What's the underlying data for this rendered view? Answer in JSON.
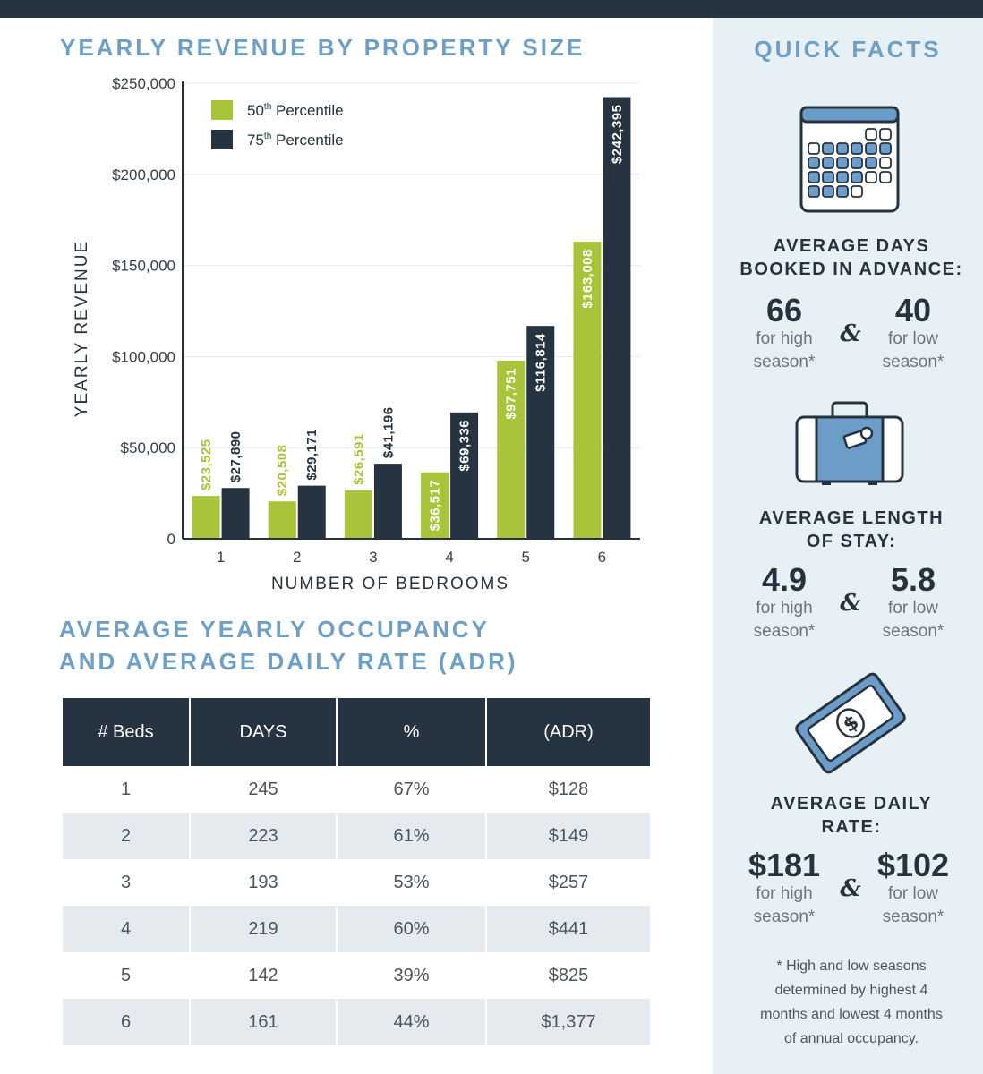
{
  "colors": {
    "navy": "#263340",
    "lime": "#a8c43a",
    "title_blue": "#6e9fc5",
    "sidebar_bg": "#e7f1f5",
    "table_alt": "#e4eaee",
    "icon_blue": "#6c9dc8"
  },
  "revenue_title": "YEARLY REVENUE BY PROPERTY SIZE",
  "occupancy_title_line1": "AVERAGE YEARLY OCCUPANCY",
  "occupancy_title_line2": "AND AVERAGE DAILY RATE (ADR)",
  "chart_data": {
    "type": "bar",
    "title": "YEARLY REVENUE BY PROPERTY SIZE",
    "xlabel": "NUMBER OF BEDROOMS",
    "ylabel": "YEARLY REVENUE",
    "categories": [
      "1",
      "2",
      "3",
      "4",
      "5",
      "6"
    ],
    "series": [
      {
        "name": "50th Percentile",
        "color": "#a8c43a",
        "values": [
          23525,
          20508,
          26591,
          36517,
          97751,
          163008
        ],
        "labels": [
          "$23,525",
          "$20,508",
          "$26,591",
          "$36,517",
          "$97,751",
          "$163,008"
        ]
      },
      {
        "name": "75th Percentile",
        "color": "#263340",
        "values": [
          27890,
          29171,
          41196,
          69336,
          116814,
          242395
        ],
        "labels": [
          "$27,890",
          "$29,171",
          "$41,196",
          "$69,336",
          "$116,814",
          "$242,395"
        ]
      }
    ],
    "yticks": [
      0,
      50000,
      100000,
      150000,
      200000,
      250000
    ],
    "ytick_labels": [
      "0",
      "$50,000",
      "$100,000",
      "$150,000",
      "$200,000",
      "$250,000"
    ],
    "ylim": [
      0,
      250000
    ],
    "legend_position": "top-left",
    "grid": true
  },
  "table": {
    "headers": [
      "# Beds",
      "DAYS",
      "%",
      "(ADR)"
    ],
    "rows": [
      [
        "1",
        "245",
        "67%",
        "$128"
      ],
      [
        "2",
        "223",
        "61%",
        "$149"
      ],
      [
        "3",
        "193",
        "53%",
        "$257"
      ],
      [
        "4",
        "219",
        "60%",
        "$441"
      ],
      [
        "5",
        "142",
        "39%",
        "$825"
      ],
      [
        "6",
        "161",
        "44%",
        "$1,377"
      ]
    ]
  },
  "quick_facts": {
    "title": "QUICK FACTS",
    "facts": [
      {
        "heading1": "AVERAGE DAYS",
        "heading2": "BOOKED IN ADVANCE:",
        "icon": "calendar-icon",
        "high": "66",
        "low": "40",
        "high_line1": "for high",
        "high_line2": "season*",
        "low_line1": "for low",
        "low_line2": "season*",
        "amp": "&"
      },
      {
        "heading1": "AVERAGE LENGTH",
        "heading2": "OF STAY:",
        "icon": "suitcase-icon",
        "high": "4.9",
        "low": "5.8",
        "high_line1": "for high",
        "high_line2": "season*",
        "low_line1": "for low",
        "low_line2": "season*",
        "amp": "&"
      },
      {
        "heading1": "AVERAGE DAILY",
        "heading2": "RATE:",
        "icon": "money-icon",
        "high": "$181",
        "low": "$102",
        "high_line1": "for high",
        "high_line2": "season*",
        "low_line1": "for low",
        "low_line2": "season*",
        "amp": "&"
      }
    ],
    "footnote_lines": [
      "* High and low seasons",
      "determined by highest 4",
      "months and lowest 4 months",
      "of annual occupancy."
    ]
  }
}
